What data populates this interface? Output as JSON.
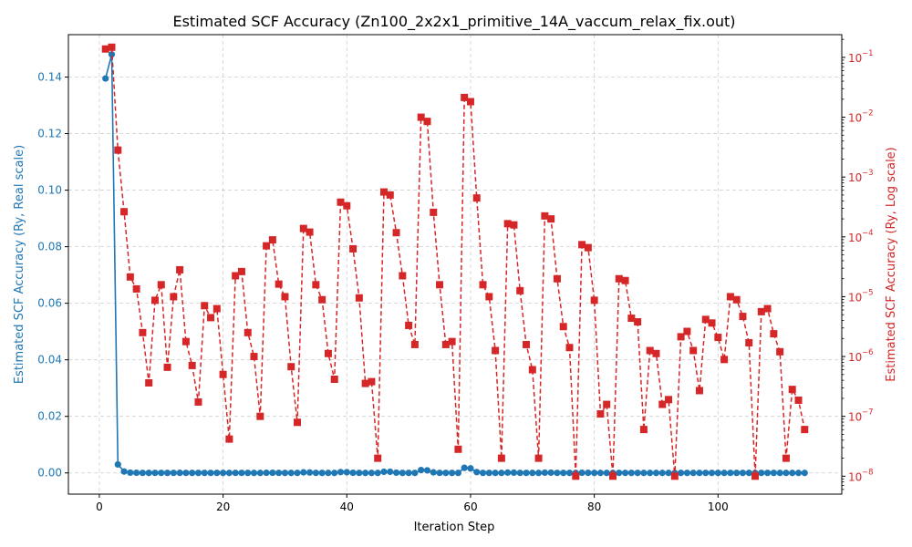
{
  "chart_data": {
    "type": "line",
    "title": "Estimated SCF Accuracy (Zn100_2x2x1_primitive_14A_vaccum_relax_fix.out)",
    "xlabel": "Iteration Step",
    "ylabel_left": "Estimated SCF Accuracy (Ry, Real scale)",
    "ylabel_right": "Estimated SCF Accuracy (Ry, Log scale)",
    "x_ticks": [
      "0",
      "20",
      "40",
      "60",
      "80",
      "100"
    ],
    "y_left_ticks": [
      "0.00",
      "0.02",
      "0.04",
      "0.06",
      "0.08",
      "0.10",
      "0.12",
      "0.14"
    ],
    "y_right_ticks": [
      "10",
      "10",
      "10",
      "10",
      "10",
      "10",
      "10",
      "10"
    ],
    "y_right_exponents": [
      "−8",
      "−7",
      "−6",
      "−5",
      "−4",
      "−3",
      "−2",
      "−1"
    ],
    "xlim": [
      -5,
      120
    ],
    "ylim_left": [
      -0.0075,
      0.155
    ],
    "ylim_right_log10": [
      -8.3,
      -0.62
    ],
    "grid": true,
    "colors": {
      "left": "#1f77b4",
      "right": "#d62728"
    },
    "steps": [
      1,
      2,
      3,
      4,
      5,
      6,
      7,
      8,
      9,
      10,
      11,
      12,
      13,
      14,
      15,
      16,
      17,
      18,
      19,
      20,
      21,
      22,
      23,
      24,
      25,
      26,
      27,
      28,
      29,
      30,
      31,
      32,
      33,
      34,
      35,
      36,
      37,
      38,
      39,
      40,
      41,
      42,
      43,
      44,
      45,
      46,
      47,
      48,
      49,
      50,
      51,
      52,
      53,
      54,
      55,
      56,
      57,
      58,
      59,
      60,
      61,
      62,
      63,
      64,
      65,
      66,
      67,
      68,
      69,
      70,
      71,
      72,
      73,
      74,
      75,
      76,
      77,
      78,
      79,
      80,
      81,
      82,
      83,
      84,
      85,
      86,
      87,
      88,
      89,
      90,
      91,
      92,
      93,
      94,
      95,
      96,
      97,
      98,
      99,
      100,
      101,
      102,
      103,
      104,
      105,
      106,
      107,
      108,
      109,
      110,
      111,
      112,
      113,
      114
    ],
    "series": [
      {
        "axis": "left",
        "style": "solid-circle",
        "values": [
          0.1395,
          0.148,
          0.003,
          0.0005,
          0.0001,
          5e-05,
          1e-05,
          5e-06,
          2e-05,
          1.5e-05,
          5e-06,
          2e-05,
          3e-05,
          1e-05,
          5e-06,
          2e-06,
          5e-06,
          5e-06,
          6e-06,
          2e-06,
          1e-07,
          1e-05,
          2e-05,
          3e-06,
          1e-06,
          2e-07,
          5e-05,
          6e-05,
          2e-05,
          8e-06,
          1e-06,
          1e-07,
          0.0002,
          0.00015,
          2e-05,
          7e-06,
          1e-06,
          5e-07,
          0.0003,
          0.00025,
          5e-05,
          9e-06,
          1e-06,
          1e-06,
          2e-08,
          0.0004,
          0.0004,
          0.0001,
          3e-06,
          2e-06,
          1e-06,
          0.001,
          0.0009,
          0.0002,
          2e-05,
          2e-06,
          2e-06,
          3e-08,
          0.0018,
          0.0016,
          0.0003,
          2e-05,
          8e-06,
          1e-06,
          2e-08,
          0.00012,
          0.00011,
          1.5e-05,
          2e-06,
          7e-07,
          2e-08,
          0.0001,
          9e-05,
          2e-05,
          4e-06,
          2e-06,
          1e-08,
          5e-05,
          4e-05,
          1e-05,
          1e-07,
          2e-07,
          1e-08,
          2e-05,
          2e-05,
          3e-06,
          3e-06,
          6e-08,
          9e-07,
          8e-07,
          2e-07,
          3e-07,
          1e-08,
          2e-06,
          2e-06,
          1e-06,
          3e-07,
          3e-06,
          3e-06,
          2e-06,
          7e-07,
          1e-05,
          8e-06,
          3e-06,
          2e-06,
          1e-08,
          4e-06,
          5e-06,
          2e-06,
          9e-07,
          2e-08,
          3e-07,
          2e-07,
          6e-08
        ]
      },
      {
        "axis": "right",
        "style": "dashed-square",
        "log10_values": [
          -0.86,
          -0.83,
          -2.55,
          -3.58,
          -4.67,
          -4.87,
          -5.6,
          -6.44,
          -5.06,
          -4.8,
          -6.18,
          -5.0,
          -4.55,
          -5.75,
          -6.15,
          -6.76,
          -5.15,
          -5.35,
          -5.2,
          -6.3,
          -7.38,
          -4.65,
          -4.58,
          -5.6,
          -6.0,
          -7.0,
          -4.15,
          -4.05,
          -4.79,
          -5.0,
          -6.17,
          -7.1,
          -3.86,
          -3.92,
          -4.8,
          -5.05,
          -5.95,
          -6.38,
          -3.42,
          -3.48,
          -4.2,
          -5.02,
          -6.45,
          -6.42,
          -7.7,
          -3.25,
          -3.3,
          -3.93,
          -4.65,
          -5.48,
          -5.8,
          -2.0,
          -2.07,
          -3.59,
          -4.8,
          -5.8,
          -5.75,
          -7.55,
          -1.67,
          -1.74,
          -3.35,
          -4.8,
          -5.0,
          -5.9,
          -7.7,
          -3.78,
          -3.8,
          -4.9,
          -5.8,
          -6.22,
          -7.7,
          -3.65,
          -3.7,
          -4.7,
          -5.5,
          -5.85,
          -8.0,
          -4.13,
          -4.18,
          -5.06,
          -6.96,
          -6.8,
          -8.0,
          -4.7,
          -4.73,
          -5.36,
          -5.42,
          -7.22,
          -5.9,
          -5.95,
          -6.8,
          -6.72,
          -8.0,
          -5.67,
          -5.58,
          -5.9,
          -6.57,
          -5.38,
          -5.44,
          -5.68,
          -6.05,
          -5.0,
          -5.05,
          -5.33,
          -5.77,
          -8.0,
          -5.25,
          -5.2,
          -5.62,
          -5.92,
          -7.7,
          -6.55,
          -6.73,
          -7.22
        ]
      }
    ]
  }
}
